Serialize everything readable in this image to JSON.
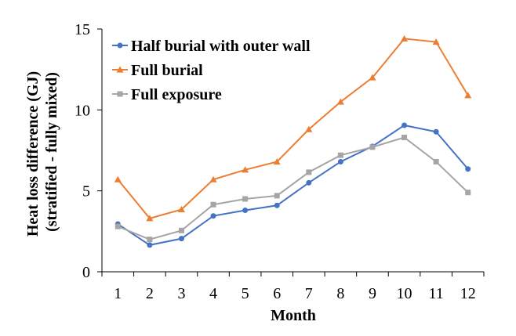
{
  "chart_data": {
    "type": "line",
    "title": "",
    "xlabel": "Month",
    "ylabel_lines": [
      "Heat loss difference (GJ)",
      "(stratified - fully mixed)"
    ],
    "categories": [
      "1",
      "2",
      "3",
      "4",
      "5",
      "6",
      "7",
      "8",
      "9",
      "10",
      "11",
      "12"
    ],
    "ylim": [
      0,
      15
    ],
    "yticks": [
      0,
      5,
      10,
      15
    ],
    "grid": false,
    "legend_position": "top-left",
    "series": [
      {
        "name": "Half burial with outer wall",
        "color": "#4472C4",
        "marker": "circle",
        "values": [
          2.95,
          1.65,
          2.05,
          3.45,
          3.8,
          4.1,
          5.5,
          6.8,
          7.75,
          9.05,
          8.65,
          6.35
        ]
      },
      {
        "name": "Full burial",
        "color": "#ED7D31",
        "marker": "triangle",
        "values": [
          5.7,
          3.3,
          3.85,
          5.7,
          6.3,
          6.8,
          8.8,
          10.5,
          12.0,
          14.4,
          14.2,
          10.9
        ]
      },
      {
        "name": "Full exposure",
        "color": "#A5A5A5",
        "marker": "square",
        "values": [
          2.8,
          2.0,
          2.55,
          4.15,
          4.5,
          4.7,
          6.15,
          7.2,
          7.7,
          8.3,
          6.8,
          4.9
        ]
      }
    ]
  }
}
